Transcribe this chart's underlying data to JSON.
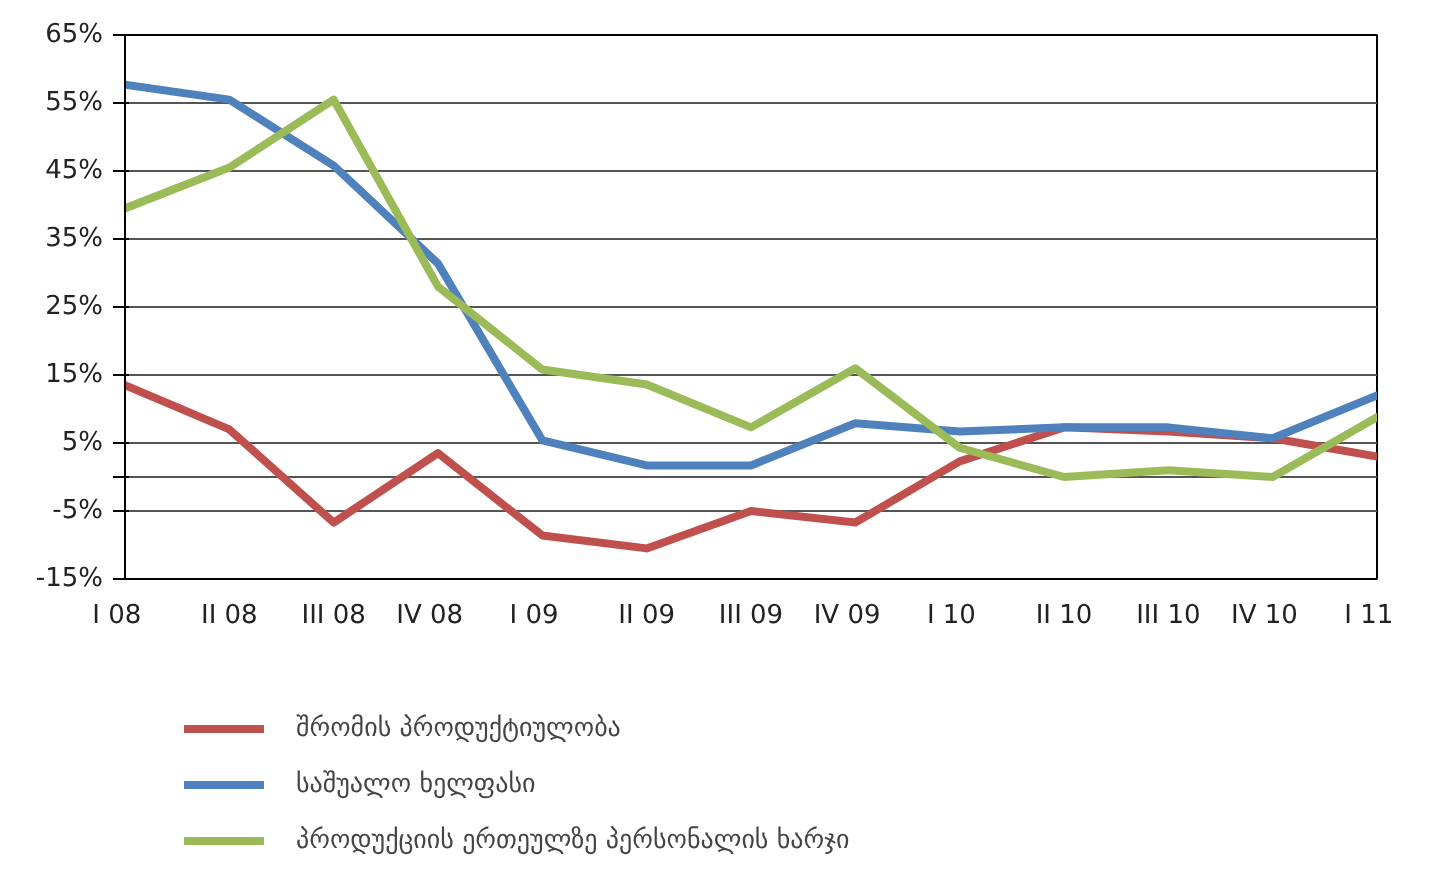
{
  "chart_data": {
    "type": "line",
    "categories": [
      "I   08",
      "II 08",
      "III 08",
      "IV   08",
      "I   09",
      "II 09",
      "III 09",
      "IV   09",
      "I   10",
      "II 10",
      "III 10",
      "IV   10",
      "I   11"
    ],
    "series": [
      {
        "name": "შრომის პროდუქტიულობა",
        "color": "#c0504d",
        "values": [
          13.5,
          7,
          -6.7,
          3.5,
          -8.6,
          -10.5,
          -5,
          -6.7,
          2.3,
          7.3,
          6.7,
          5.7,
          3
        ]
      },
      {
        "name": "საშუალო ხელფასი",
        "color": "#4f81bd",
        "values": [
          57.7,
          55.5,
          45.8,
          31.4,
          5.4,
          1.7,
          1.7,
          7.9,
          6.7,
          7.3,
          7.3,
          5.7,
          12
        ]
      },
      {
        "name": "პროდუქციის ერთეულზე პერსონალის ხარჯი",
        "color": "#9bbb59",
        "values": [
          39.5,
          45.5,
          55.5,
          28,
          15.8,
          13.6,
          7.3,
          16,
          4.3,
          0,
          1,
          0,
          8.8
        ]
      }
    ],
    "ylim": [
      -15,
      65
    ],
    "yticks": [
      {
        "value": -15,
        "label": "-15%"
      },
      {
        "value": -5,
        "label": "-5%"
      },
      {
        "value": 0,
        "label": null
      },
      {
        "value": 5,
        "label": "5%"
      },
      {
        "value": 15,
        "label": "15%"
      },
      {
        "value": 25,
        "label": "25%"
      },
      {
        "value": 35,
        "label": "35%"
      },
      {
        "value": 45,
        "label": "45%"
      },
      {
        "value": 55,
        "label": "55%"
      },
      {
        "value": 65,
        "label": "65%"
      }
    ],
    "grid": "y",
    "legend": "bottom",
    "line_style": "solid",
    "marker": "none"
  }
}
